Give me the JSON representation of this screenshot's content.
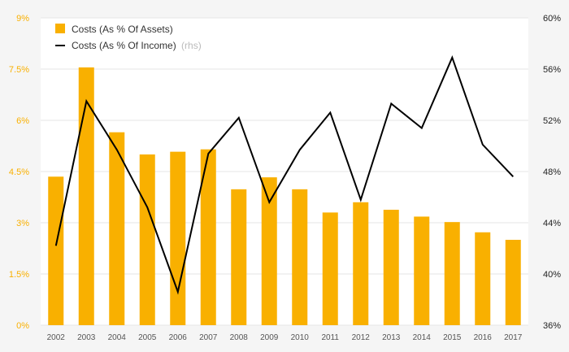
{
  "chart_data": {
    "type": "bar",
    "categories": [
      "2002",
      "2003",
      "2004",
      "2005",
      "2006",
      "2007",
      "2008",
      "2009",
      "2010",
      "2011",
      "2012",
      "2013",
      "2014",
      "2015",
      "2016",
      "2017"
    ],
    "series": [
      {
        "name": "Costs (As % Of Assets)",
        "type": "bar",
        "axis": "left",
        "color": "#f9b000",
        "values": [
          4.35,
          7.55,
          5.65,
          5.0,
          5.08,
          5.15,
          3.98,
          4.33,
          3.98,
          3.3,
          3.6,
          3.38,
          3.18,
          3.02,
          2.72,
          2.5
        ]
      },
      {
        "name": "Costs (As % Of Income)",
        "name_suffix": "(rhs)",
        "type": "line",
        "axis": "right",
        "color": "#000000",
        "values": [
          42.2,
          53.5,
          49.7,
          45.2,
          38.6,
          49.4,
          52.2,
          45.6,
          49.7,
          52.6,
          45.8,
          53.3,
          51.4,
          56.9,
          50.1,
          47.6
        ]
      }
    ],
    "y_left": {
      "ylim": [
        0,
        9
      ],
      "ticks": [
        "0%",
        "1.5%",
        "3%",
        "4.5%",
        "6%",
        "7.5%",
        "9%"
      ],
      "tick_values": [
        0,
        1.5,
        3,
        4.5,
        6,
        7.5,
        9
      ],
      "color": "#f9b000"
    },
    "y_right": {
      "ylim": [
        36,
        60
      ],
      "ticks": [
        "36%",
        "40%",
        "44%",
        "48%",
        "52%",
        "56%",
        "60%"
      ],
      "tick_values": [
        36,
        40,
        44,
        48,
        52,
        56,
        60
      ],
      "color": "#222222"
    },
    "grid": true,
    "grid_color": "#e6e6e6",
    "legend_position": "top-left",
    "title": "",
    "xlabel": "",
    "ylabel": ""
  }
}
